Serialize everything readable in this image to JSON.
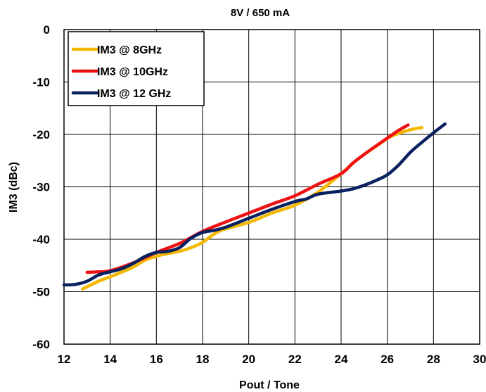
{
  "chart_data": {
    "type": "line",
    "title": "8V / 650 mA",
    "xlabel": "Pout / Tone",
    "ylabel": "IM3 (dBc)",
    "xlim": [
      12,
      30
    ],
    "ylim": [
      -60,
      0
    ],
    "xticks": [
      12,
      14,
      16,
      18,
      20,
      22,
      24,
      26,
      28,
      30
    ],
    "yticks": [
      0,
      -10,
      -20,
      -30,
      -40,
      -50,
      -60
    ],
    "grid": true,
    "legend_position": "top-left",
    "series": [
      {
        "name": "IM3 @ 8GHz",
        "color": "#F5B800",
        "points": [
          [
            12.8,
            -49.5
          ],
          [
            13.5,
            -48.0
          ],
          [
            14.2,
            -46.8
          ],
          [
            15.0,
            -45.3
          ],
          [
            15.5,
            -44.0
          ],
          [
            16.2,
            -43.0
          ],
          [
            17.0,
            -42.3
          ],
          [
            17.5,
            -41.6
          ],
          [
            18.0,
            -40.6
          ],
          [
            18.5,
            -39.0
          ],
          [
            19.0,
            -38.0
          ],
          [
            20.0,
            -36.8
          ],
          [
            21.0,
            -35.0
          ],
          [
            22.0,
            -33.5
          ],
          [
            23.0,
            -31.0
          ],
          [
            24.0,
            -27.5
          ],
          [
            24.7,
            -24.8
          ],
          [
            25.5,
            -22.3
          ],
          [
            26.2,
            -20.3
          ],
          [
            27.0,
            -19.1
          ],
          [
            27.5,
            -18.7
          ]
        ]
      },
      {
        "name": "IM3 @ 10GHz",
        "color": "#EE1111",
        "points": [
          [
            13.0,
            -46.3
          ],
          [
            13.5,
            -46.2
          ],
          [
            14.0,
            -46.0
          ],
          [
            15.0,
            -44.5
          ],
          [
            16.0,
            -42.5
          ],
          [
            17.0,
            -40.8
          ],
          [
            18.0,
            -38.5
          ],
          [
            19.0,
            -36.7
          ],
          [
            20.0,
            -35.0
          ],
          [
            21.0,
            -33.3
          ],
          [
            22.0,
            -31.7
          ],
          [
            23.0,
            -29.5
          ],
          [
            24.0,
            -27.5
          ],
          [
            24.5,
            -25.5
          ],
          [
            25.0,
            -23.8
          ],
          [
            26.0,
            -20.7
          ],
          [
            26.5,
            -19.2
          ],
          [
            26.9,
            -18.2
          ]
        ]
      },
      {
        "name": "IM3 @ 12 GHz",
        "color": "#0A2160",
        "points": [
          [
            12.0,
            -48.7
          ],
          [
            12.5,
            -48.6
          ],
          [
            13.0,
            -48.0
          ],
          [
            13.5,
            -46.8
          ],
          [
            14.0,
            -46.2
          ],
          [
            14.5,
            -45.6
          ],
          [
            15.0,
            -44.6
          ],
          [
            15.5,
            -43.3
          ],
          [
            16.0,
            -42.5
          ],
          [
            16.5,
            -42.3
          ],
          [
            17.0,
            -41.6
          ],
          [
            17.5,
            -39.8
          ],
          [
            18.0,
            -38.7
          ],
          [
            18.5,
            -38.3
          ],
          [
            19.0,
            -37.7
          ],
          [
            20.0,
            -36.0
          ],
          [
            21.0,
            -34.3
          ],
          [
            22.0,
            -32.8
          ],
          [
            22.5,
            -32.3
          ],
          [
            23.0,
            -31.4
          ],
          [
            24.0,
            -30.8
          ],
          [
            24.5,
            -30.4
          ],
          [
            25.0,
            -29.7
          ],
          [
            25.5,
            -28.8
          ],
          [
            26.0,
            -27.7
          ],
          [
            26.5,
            -25.8
          ],
          [
            27.0,
            -23.4
          ],
          [
            27.5,
            -21.5
          ],
          [
            28.0,
            -19.7
          ],
          [
            28.5,
            -18.0
          ]
        ]
      }
    ]
  }
}
